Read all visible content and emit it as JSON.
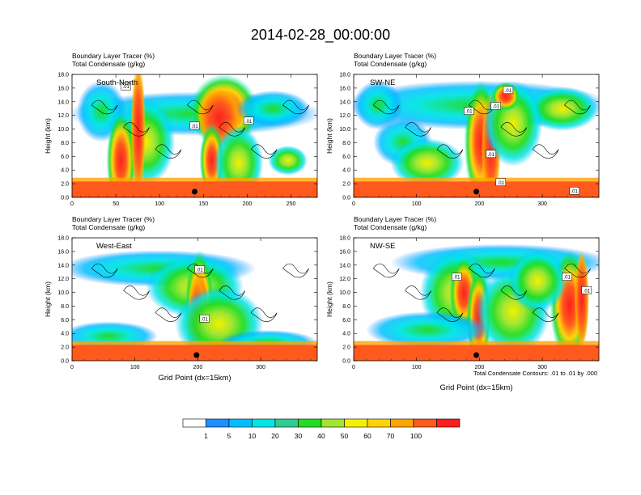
{
  "title": "2014-02-28_00:00:00",
  "colorbar": {
    "colors": [
      "#ffffff",
      "#1e90ff",
      "#00bfff",
      "#00e5e5",
      "#2ecc8f",
      "#22dd22",
      "#a0e632",
      "#f5f000",
      "#ffd200",
      "#ffa500",
      "#ff5a1e",
      "#ff1e1e"
    ],
    "labels": [
      "1",
      "5",
      "10",
      "20",
      "30",
      "40",
      "50",
      "60",
      "70",
      "100"
    ]
  },
  "contour_note": "Total Condensate Contours: .01 to .01 by .000",
  "chart_data": [
    {
      "type": "heatmap",
      "panel_label": "South-North",
      "title_line1": "Boundary Layer Tracer   (%)",
      "title_line2": "Total Condensate   (g/kg)",
      "ylabel": "Height (km)",
      "xlabel": "",
      "xlim": [
        0,
        280
      ],
      "ylim": [
        0,
        18
      ],
      "xticks": [
        "0",
        "50",
        "100",
        "150",
        "200",
        "250"
      ],
      "yticks": [
        "0.0",
        "2.0",
        "4.0",
        "6.0",
        "8.0",
        "10.0",
        "12.0",
        "14.0",
        "16.0",
        "18.0"
      ],
      "contour_labels": [
        ".01",
        ".01",
        ".01"
      ],
      "marker_x": 140
    },
    {
      "type": "heatmap",
      "panel_label": "SW-NE",
      "title_line1": "Boundary Layer Tracer   (%)",
      "title_line2": "Total Condensate   (g/kg)",
      "ylabel": "Height (km)",
      "xlabel": "",
      "xlim": [
        0,
        390
      ],
      "ylim": [
        0,
        18
      ],
      "xticks": [
        "0",
        "100",
        "200",
        "300"
      ],
      "yticks": [
        "0.0",
        "2.0",
        "4.0",
        "6.0",
        "8.0",
        "10.0",
        "12.0",
        "14.0",
        "16.0",
        "18.0"
      ],
      "contour_labels": [
        ".01",
        ".01",
        ".01",
        ".01",
        ".01",
        ".01"
      ],
      "marker_x": 195
    },
    {
      "type": "heatmap",
      "panel_label": "West-East",
      "title_line1": "Boundary Layer Tracer   (%)",
      "title_line2": "Total Condensate   (g/kg)",
      "ylabel": "Height (km)",
      "xlabel": "Grid Point (dx=15km)",
      "xlim": [
        0,
        390
      ],
      "ylim": [
        0,
        18
      ],
      "xticks": [
        "0",
        "100",
        "200",
        "300"
      ],
      "yticks": [
        "0.0",
        "2.0",
        "4.0",
        "6.0",
        "8.0",
        "10.0",
        "12.0",
        "14.0",
        "16.0",
        "18.0"
      ],
      "contour_labels": [
        ".01",
        ".01"
      ],
      "marker_x": 198
    },
    {
      "type": "heatmap",
      "panel_label": "NW-SE",
      "title_line1": "Boundary Layer Tracer   (%)",
      "title_line2": "Total Condensate   (g/kg)",
      "ylabel": "Height (km)",
      "xlabel": "Grid Point (dx=15km)",
      "xlim": [
        0,
        390
      ],
      "ylim": [
        0,
        18
      ],
      "xticks": [
        "0",
        "100",
        "200",
        "300"
      ],
      "yticks": [
        "0.0",
        "2.0",
        "4.0",
        "6.0",
        "8.0",
        "10.0",
        "12.0",
        "14.0",
        "16.0",
        "18.0"
      ],
      "contour_labels": [
        ".01",
        ".01",
        ".01"
      ],
      "marker_x": 195
    }
  ]
}
